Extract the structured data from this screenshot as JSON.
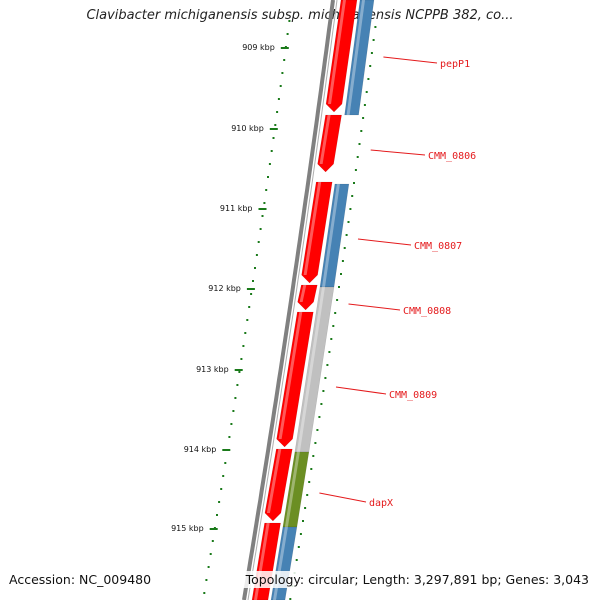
{
  "title": "Clavibacter michiganensis subsp. michiganensis NCPPB 382, co...",
  "accession": "Accession: NC_009480",
  "summary": "Topology: circular; Length: 3,297,891 bp; Genes: 3,043",
  "colors": {
    "backbone": "#808080",
    "forward_gene": "#ff0000",
    "reverse_gene": "#4682b4",
    "gray_gene": "#c0c0c0",
    "olive_gene": "#6b8e23",
    "tick": "#1a7a1a",
    "label": "#e41a1c"
  },
  "ruler": {
    "ticks": [
      {
        "label": "909 kbp"
      },
      {
        "label": "910 kbp"
      },
      {
        "label": "911 kbp"
      },
      {
        "label": "912 kbp"
      },
      {
        "label": "913 kbp"
      },
      {
        "label": "914 kbp"
      },
      {
        "label": "915 kbp"
      }
    ]
  },
  "gene_labels": [
    {
      "name": "pepP1"
    },
    {
      "name": "CMM_0806"
    },
    {
      "name": "CMM_0807"
    },
    {
      "name": "CMM_0808"
    },
    {
      "name": "CMM_0809"
    },
    {
      "name": "dapX"
    }
  ]
}
